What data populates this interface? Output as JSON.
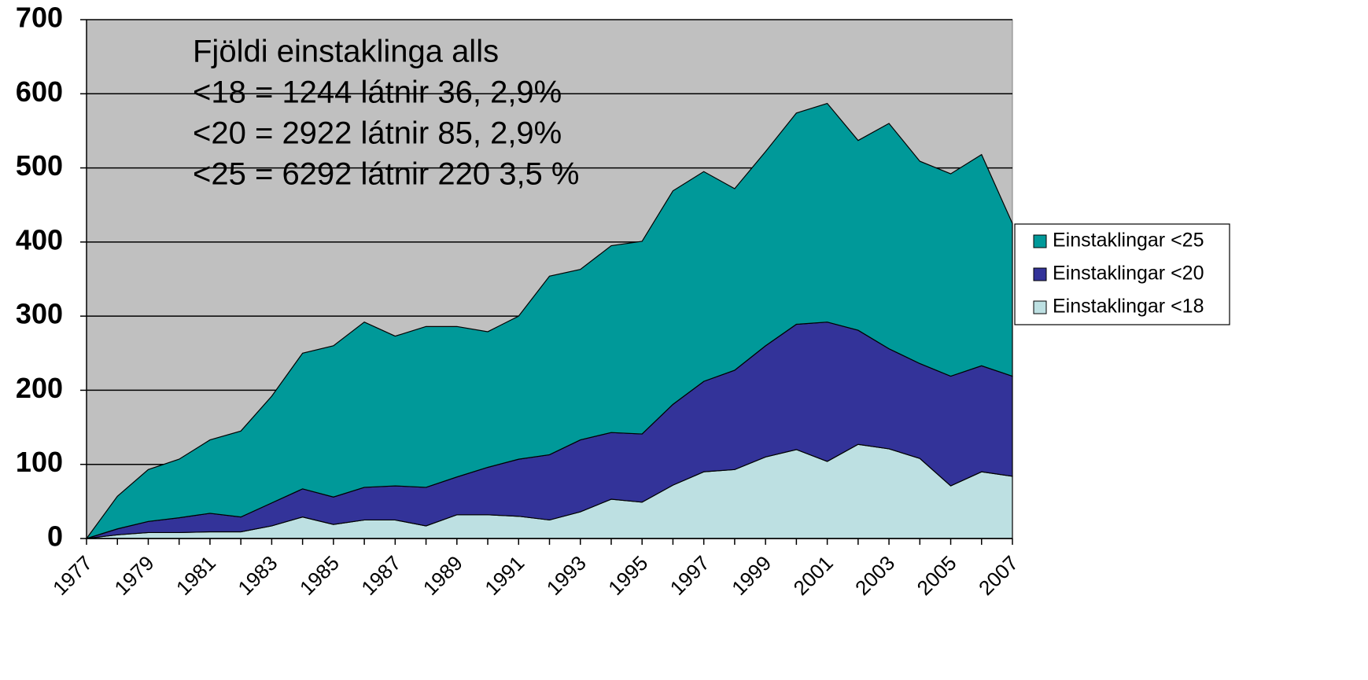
{
  "chart_data": {
    "type": "stacked_area",
    "annotations": [
      "Fjöldi einstaklinga alls",
      "<18 = 1244 látnir 36, 2,9%",
      "<20 = 2922 látnir 85, 2,9%",
      "<25 = 6292 látnir 220 3,5 %"
    ],
    "categories": [
      "1977",
      null,
      "1979",
      null,
      "1981",
      null,
      "1983",
      null,
      "1985",
      null,
      "1987",
      null,
      "1989",
      null,
      "1991",
      null,
      "1993",
      null,
      "1995",
      null,
      "1997",
      null,
      "1999",
      null,
      "2001",
      null,
      "2003",
      null,
      "2005",
      null,
      "2007"
    ],
    "series": [
      {
        "name": "Einstaklingar <25",
        "color": "#009999",
        "values": [
          0,
          44,
          70,
          79,
          99,
          116,
          144,
          183,
          204,
          223,
          202,
          217,
          203,
          183,
          193,
          241,
          230,
          252,
          260,
          288,
          283,
          245,
          262,
          285,
          295,
          256,
          304,
          273,
          273,
          285,
          206
        ]
      },
      {
        "name": "Einstaklingar <20",
        "color": "#333399",
        "values": [
          0,
          8,
          15,
          20,
          25,
          20,
          31,
          38,
          37,
          44,
          46,
          52,
          51,
          64,
          77,
          88,
          97,
          90,
          92,
          109,
          122,
          134,
          150,
          169,
          188,
          154,
          135,
          128,
          148,
          143,
          135
        ]
      },
      {
        "name": "Einstaklingar <18",
        "color": "#bde0e2",
        "values": [
          0,
          5,
          8,
          8,
          9,
          9,
          17,
          29,
          19,
          25,
          25,
          17,
          32,
          32,
          30,
          25,
          36,
          53,
          49,
          72,
          90,
          93,
          110,
          120,
          104,
          127,
          121,
          108,
          71,
          90,
          84
        ]
      }
    ],
    "ylim": [
      0,
      700
    ],
    "yticks": [
      0,
      100,
      200,
      300,
      400,
      500,
      600,
      700
    ],
    "grid": true,
    "legend": "right",
    "background": "#c0c0c0"
  }
}
